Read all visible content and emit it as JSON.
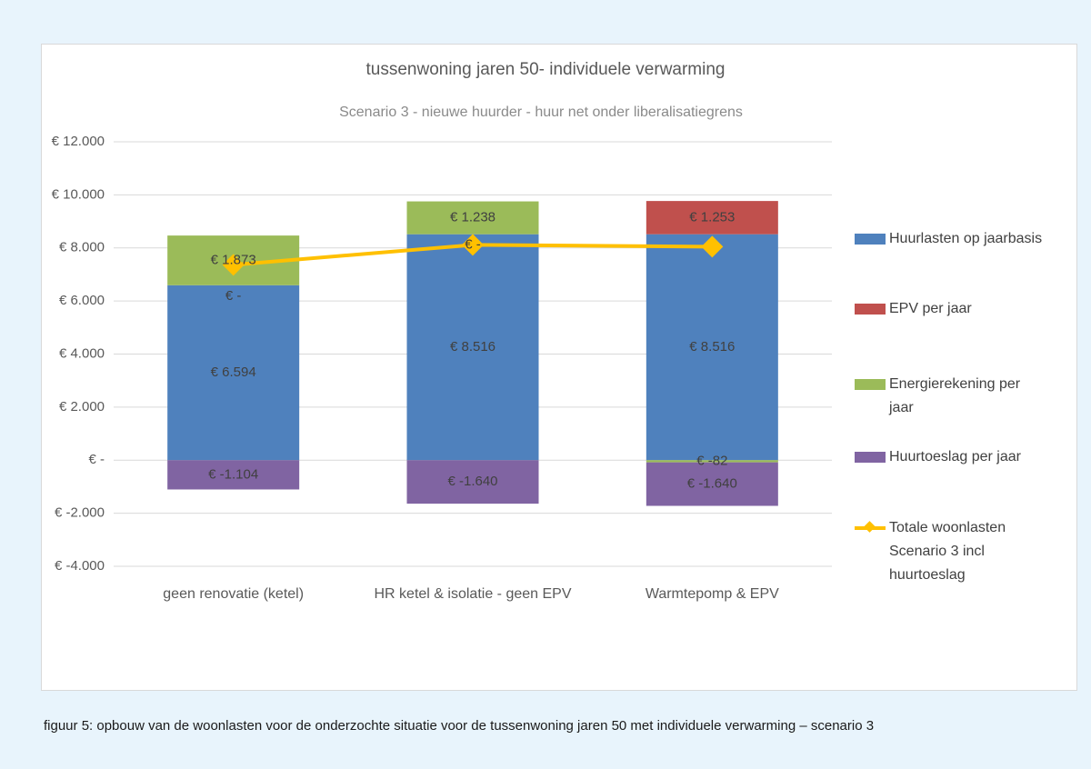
{
  "chart_data": {
    "type": "bar",
    "stacked": true,
    "title": "tussenwoning jaren 50- individuele verwarming",
    "subtitle": "Scenario 3 - nieuwe huurder  -  huur net onder liberalisatiegrens",
    "categories": [
      "geen renovatie (ketel)",
      "HR ketel & isolatie - geen EPV",
      "Warmtepomp & EPV"
    ],
    "series": [
      {
        "name": "Huurlasten op jaarbasis",
        "color": "#4f81bd",
        "values": [
          6594,
          8516,
          8516
        ],
        "value_labels": [
          "€ 6.594",
          "€ 8.516",
          "€ 8.516"
        ]
      },
      {
        "name": "EPV per jaar",
        "color": "#c0504d",
        "values": [
          0,
          0,
          1253
        ],
        "value_labels": [
          "€ -",
          "€ -",
          "€ 1.253"
        ]
      },
      {
        "name": "Energierekening per jaar",
        "color": "#9bbb59",
        "values": [
          1873,
          1238,
          -82
        ],
        "value_labels": [
          "€ 1.873",
          "€ 1.238",
          "€ -82"
        ]
      },
      {
        "name": "Huurtoeslag per jaar",
        "color": "#8064a2",
        "values": [
          -1104,
          -1640,
          -1640
        ],
        "value_labels": [
          "€ -1.104",
          "€ -1.640",
          "€ -1.640"
        ]
      },
      {
        "name": "Totale woonlasten Scenario 3 incl huurtoeslag",
        "color": "#ffc000",
        "type": "line",
        "values": [
          7363,
          8114,
          8047
        ]
      }
    ],
    "ylim": [
      -4000,
      12000
    ],
    "yticks": [
      {
        "value": -4000,
        "label": "€ -4.000"
      },
      {
        "value": -2000,
        "label": "€ -2.000"
      },
      {
        "value": 0,
        "label": "€ -"
      },
      {
        "value": 2000,
        "label": "€ 2.000"
      },
      {
        "value": 4000,
        "label": "€ 4.000"
      },
      {
        "value": 6000,
        "label": "€ 6.000"
      },
      {
        "value": 8000,
        "label": "€ 8.000"
      },
      {
        "value": 10000,
        "label": "€ 10.000"
      },
      {
        "value": 12000,
        "label": "€ 12.000"
      }
    ],
    "grid": true,
    "legend": "right"
  },
  "caption": "figuur 5: opbouw van de woonlasten voor de onderzochte situatie voor de tussenwoning jaren 50 met individuele verwarming – scenario 3"
}
